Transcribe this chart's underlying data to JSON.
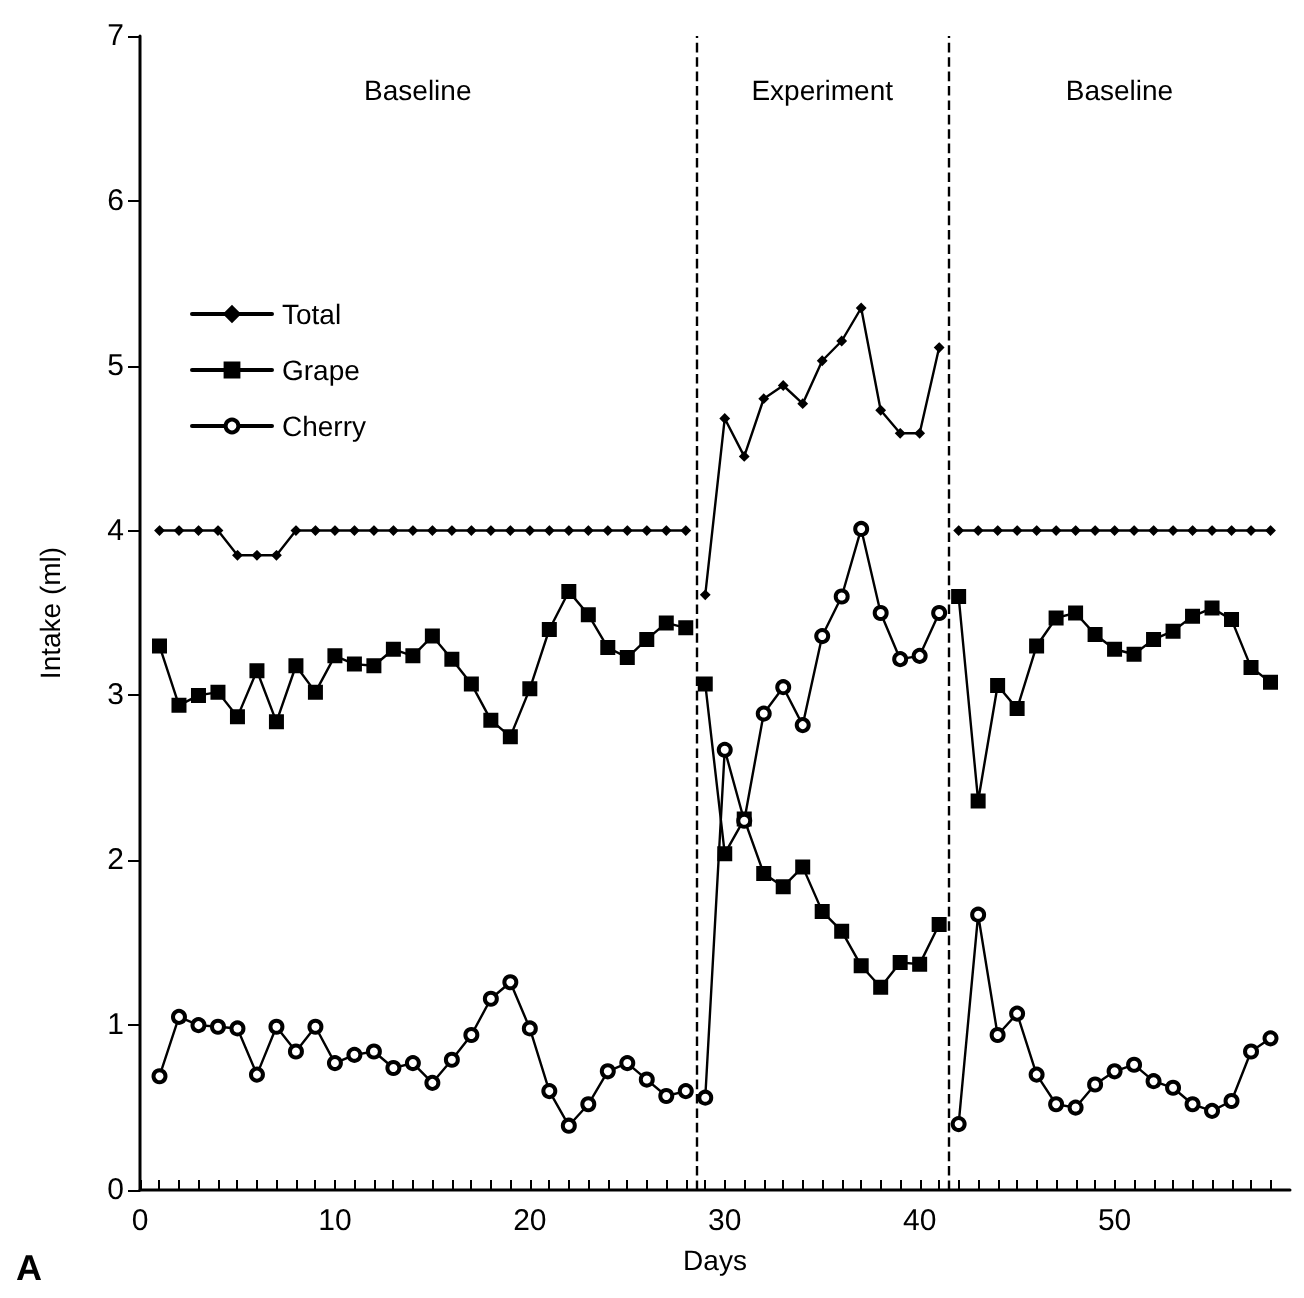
{
  "chart_data": {
    "type": "line",
    "xlabel": "Days",
    "ylabel": "Intake (ml)",
    "xlim": [
      0,
      59
    ],
    "ylim": [
      0,
      7
    ],
    "xticks": [
      0,
      {
        "value": 1,
        "label": null
      },
      {
        "value": 2,
        "label": null
      },
      {
        "value": 3,
        "label": null
      },
      {
        "value": 4,
        "label": null
      },
      {
        "value": 5,
        "label": null
      },
      {
        "value": 6,
        "label": null
      },
      {
        "value": 7,
        "label": null
      },
      {
        "value": 8,
        "label": null
      },
      {
        "value": 9,
        "label": null
      },
      10,
      {
        "value": 11,
        "label": null
      },
      {
        "value": 12,
        "label": null
      },
      {
        "value": 13,
        "label": null
      },
      {
        "value": 14,
        "label": null
      },
      {
        "value": 15,
        "label": null
      },
      {
        "value": 16,
        "label": null
      },
      {
        "value": 17,
        "label": null
      },
      {
        "value": 18,
        "label": null
      },
      {
        "value": 19,
        "label": null
      },
      20,
      {
        "value": 21,
        "label": null
      },
      {
        "value": 22,
        "label": null
      },
      {
        "value": 23,
        "label": null
      },
      {
        "value": 24,
        "label": null
      },
      {
        "value": 25,
        "label": null
      },
      {
        "value": 26,
        "label": null
      },
      {
        "value": 27,
        "label": null
      },
      {
        "value": 28,
        "label": null
      },
      {
        "value": 29,
        "label": null
      },
      30,
      {
        "value": 31,
        "label": null
      },
      {
        "value": 32,
        "label": null
      },
      {
        "value": 33,
        "label": null
      },
      {
        "value": 34,
        "label": null
      },
      {
        "value": 35,
        "label": null
      },
      {
        "value": 36,
        "label": null
      },
      {
        "value": 37,
        "label": null
      },
      {
        "value": 38,
        "label": null
      },
      {
        "value": 39,
        "label": null
      },
      40,
      {
        "value": 41,
        "label": null
      },
      {
        "value": 42,
        "label": null
      },
      {
        "value": 43,
        "label": null
      },
      {
        "value": 44,
        "label": null
      },
      {
        "value": 45,
        "label": null
      },
      {
        "value": 46,
        "label": null
      },
      {
        "value": 47,
        "label": null
      },
      {
        "value": 48,
        "label": null
      },
      {
        "value": 49,
        "label": null
      },
      50,
      {
        "value": 51,
        "label": null
      },
      {
        "value": 52,
        "label": null
      },
      {
        "value": 53,
        "label": null
      },
      {
        "value": 54,
        "label": null
      },
      {
        "value": 55,
        "label": null
      },
      {
        "value": 56,
        "label": null
      },
      {
        "value": 57,
        "label": null
      },
      {
        "value": 58,
        "label": null
      }
    ],
    "yticks": [
      0,
      1,
      2,
      3,
      4,
      5,
      6,
      7
    ],
    "x": [
      1,
      2,
      3,
      4,
      5,
      6,
      7,
      8,
      9,
      10,
      11,
      12,
      13,
      14,
      15,
      16,
      17,
      18,
      19,
      20,
      21,
      22,
      23,
      24,
      25,
      26,
      27,
      28,
      28.5,
      29,
      30,
      31,
      32,
      33,
      34,
      35,
      36,
      37,
      38,
      39,
      40,
      41,
      41.5,
      42,
      43,
      44,
      45,
      46,
      47,
      48,
      49,
      50,
      51,
      52,
      53,
      54,
      55,
      56,
      57,
      58
    ],
    "series": [
      {
        "name": "Total",
        "color": "#000000",
        "marker": "diamond",
        "values": [
          4.0,
          4.0,
          4.0,
          4.0,
          3.85,
          3.85,
          3.85,
          4.0,
          4.0,
          4.0,
          4.0,
          4.0,
          4.0,
          4.0,
          4.0,
          4.0,
          4.0,
          4.0,
          4.0,
          4.0,
          4.0,
          4.0,
          4.0,
          4.0,
          4.0,
          4.0,
          4.0,
          4.0,
          null,
          3.61,
          4.68,
          4.45,
          4.8,
          4.88,
          4.77,
          5.03,
          5.15,
          5.35,
          4.73,
          4.59,
          4.59,
          5.11,
          null,
          4.0,
          4.0,
          4.0,
          4.0,
          4.0,
          4.0,
          4.0,
          4.0,
          4.0,
          4.0,
          4.0,
          4.0,
          4.0,
          4.0,
          4.0,
          4.0,
          4.0
        ]
      },
      {
        "name": "Grape",
        "color": "#000000",
        "marker": "square",
        "values": [
          3.3,
          2.94,
          3.0,
          3.02,
          2.87,
          3.15,
          2.84,
          3.18,
          3.02,
          3.24,
          3.19,
          3.18,
          3.28,
          3.24,
          3.36,
          3.22,
          3.07,
          2.85,
          2.75,
          3.04,
          3.4,
          3.63,
          3.49,
          3.29,
          3.23,
          3.34,
          3.44,
          3.41,
          null,
          3.07,
          2.04,
          2.25,
          1.92,
          1.84,
          1.96,
          1.69,
          1.57,
          1.36,
          1.23,
          1.38,
          1.37,
          1.61,
          null,
          3.6,
          2.36,
          3.06,
          2.92,
          3.3,
          3.47,
          3.5,
          3.37,
          3.28,
          3.25,
          3.34,
          3.39,
          3.48,
          3.53,
          3.46,
          3.17,
          3.08
        ]
      },
      {
        "name": "Cherry",
        "color": "#000000",
        "marker": "circle",
        "values": [
          0.69,
          1.05,
          1.0,
          0.99,
          0.98,
          0.7,
          0.99,
          0.84,
          0.99,
          0.77,
          0.82,
          0.84,
          0.74,
          0.77,
          0.65,
          0.79,
          0.94,
          1.16,
          1.26,
          0.98,
          0.6,
          0.39,
          0.52,
          0.72,
          0.77,
          0.67,
          0.57,
          0.6,
          null,
          0.56,
          2.67,
          2.24,
          2.89,
          3.05,
          2.82,
          3.36,
          3.6,
          4.01,
          3.5,
          3.22,
          3.24,
          3.5,
          null,
          0.4,
          1.67,
          0.94,
          1.07,
          0.7,
          0.52,
          0.5,
          0.64,
          0.72,
          0.76,
          0.66,
          0.62,
          0.52,
          0.48,
          0.54,
          0.84,
          0.92
        ]
      }
    ],
    "ref_lines": [
      {
        "axis": "x",
        "value": 28.5,
        "color": "#000000",
        "line_style": "dashed"
      },
      {
        "axis": "x",
        "value": 41.5,
        "color": "#000000",
        "line_style": "dashed"
      }
    ],
    "annotations": [
      "Baseline",
      "Experiment",
      "Baseline",
      "A"
    ],
    "legend": "top left",
    "grid": false,
    "line_style": "solid"
  }
}
